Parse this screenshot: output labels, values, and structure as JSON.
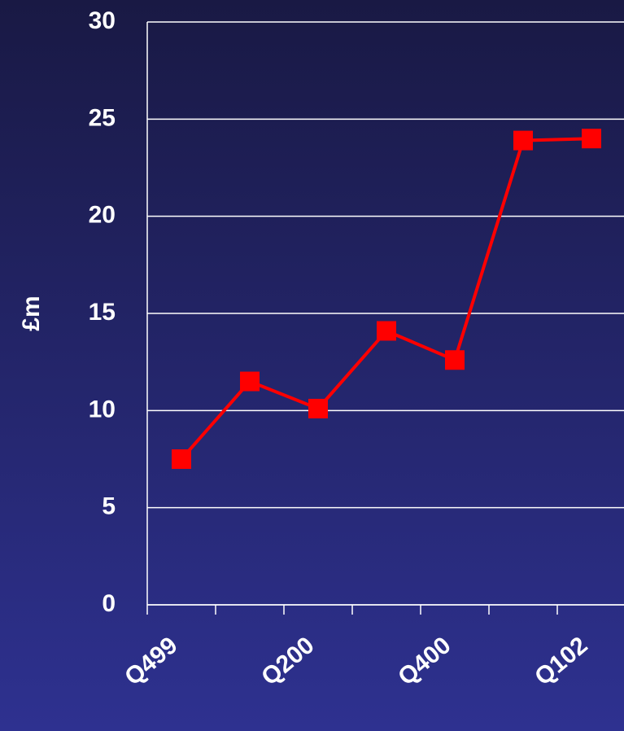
{
  "chart_data": {
    "type": "line",
    "y_label": "£m",
    "categories": [
      "Q499",
      null,
      "Q200",
      null,
      "Q400",
      null,
      "Q102"
    ],
    "series": [
      {
        "name": "£m",
        "color": "#ff0000",
        "values": [
          7.5,
          11.5,
          10.1,
          14.1,
          12.6,
          23.9,
          24.0
        ]
      }
    ],
    "ylim": [
      0,
      30
    ],
    "yticks": [
      0,
      5,
      10,
      15,
      20,
      25,
      30
    ],
    "grid": true
  }
}
